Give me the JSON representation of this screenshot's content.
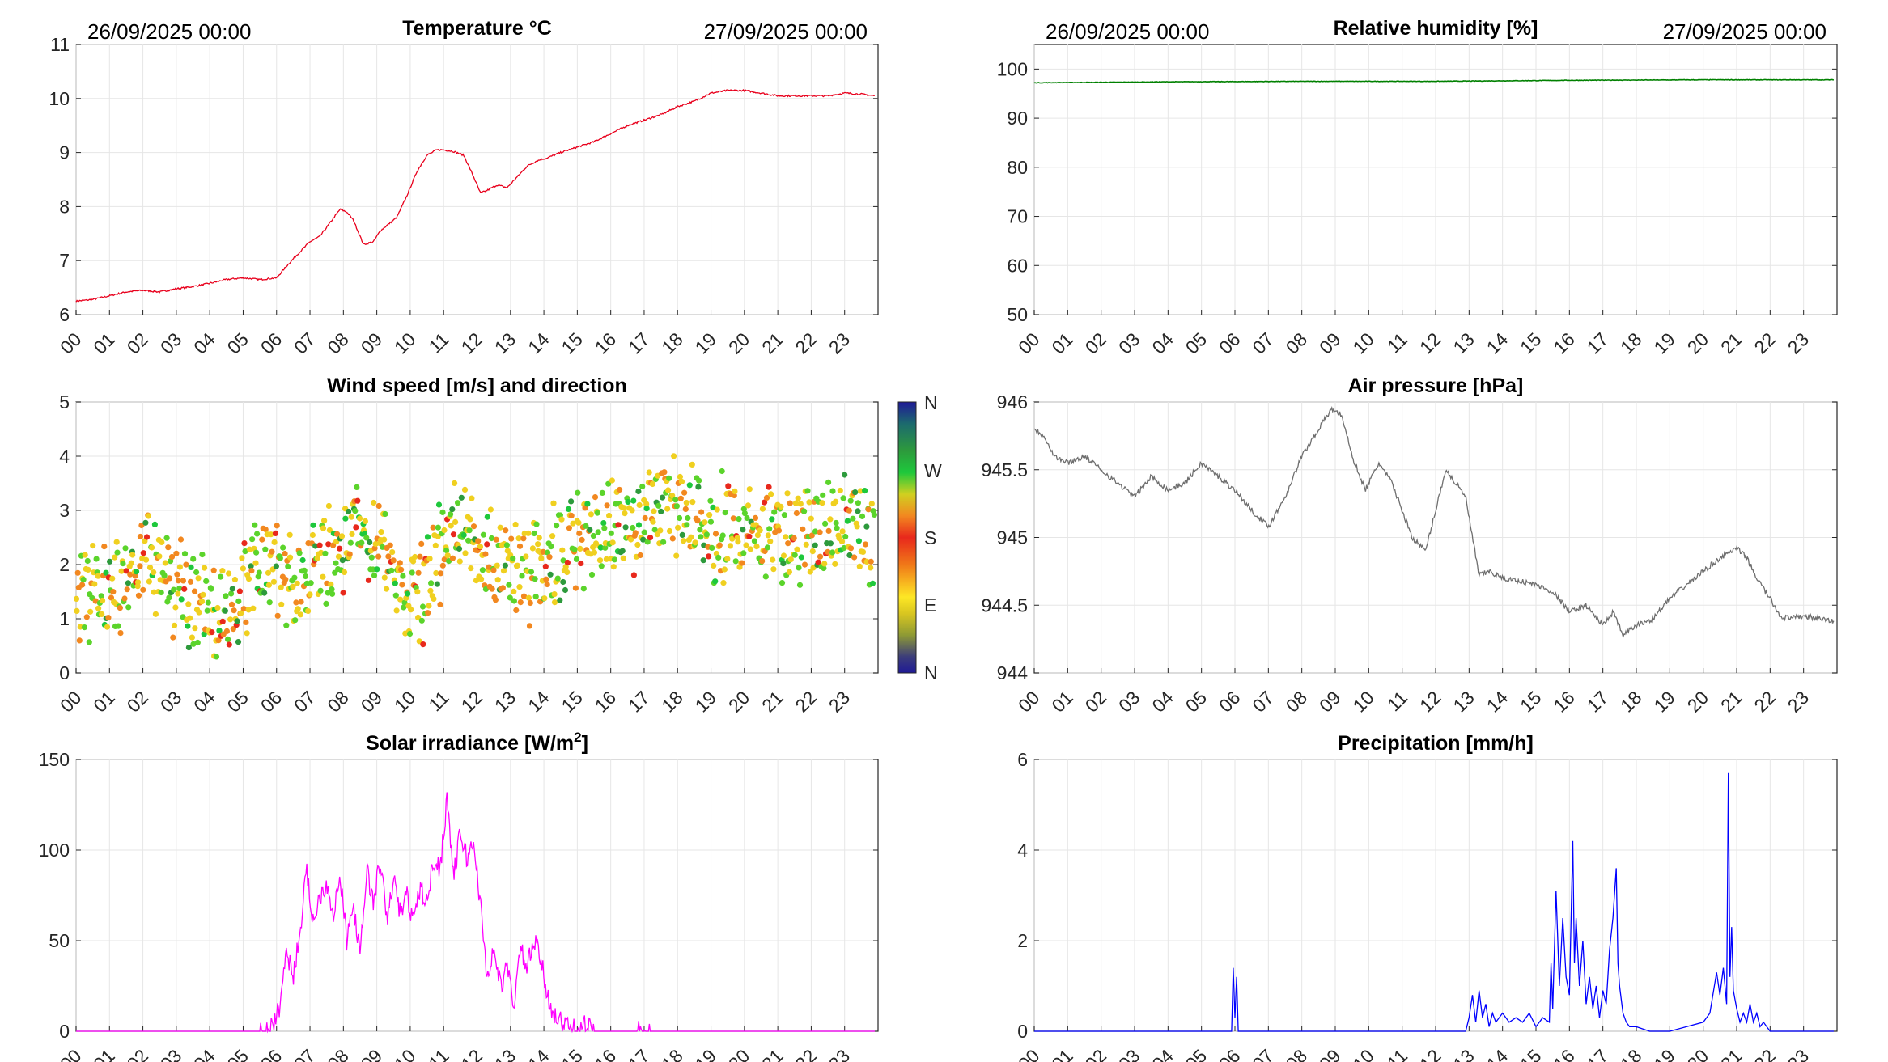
{
  "hour_labels": [
    "00",
    "01",
    "02",
    "03",
    "04",
    "05",
    "06",
    "07",
    "08",
    "09",
    "10",
    "11",
    "12",
    "13",
    "14",
    "15",
    "16",
    "17",
    "18",
    "19",
    "20",
    "21",
    "22",
    "23"
  ],
  "period": {
    "start": "26/09/2025 00:00",
    "end": "27/09/2025 00:00"
  },
  "colorbar": {
    "labels": [
      "N",
      "W",
      "S",
      "E",
      "N"
    ]
  },
  "chart_data": [
    {
      "id": "temperature",
      "type": "line",
      "title": "Temperature °C",
      "color": "#e8001c",
      "ylim": [
        6,
        11
      ],
      "yticks": [
        6,
        7,
        8,
        9,
        10,
        11
      ],
      "xlim": [
        0,
        24
      ],
      "grid": true,
      "x": [
        0,
        0.5,
        1,
        1.5,
        2,
        2.5,
        3,
        3.5,
        4,
        4.5,
        5,
        5.5,
        6,
        6.3,
        6.6,
        7,
        7.3,
        7.6,
        7.9,
        8.1,
        8.3,
        8.6,
        8.9,
        9.1,
        9.3,
        9.6,
        9.9,
        10.2,
        10.5,
        10.8,
        11,
        11.3,
        11.6,
        11.9,
        12.1,
        12.3,
        12.6,
        12.9,
        13.2,
        13.5,
        13.8,
        14.1,
        14.5,
        15,
        15.5,
        16,
        16.5,
        17,
        17.5,
        18,
        18.5,
        19,
        19.5,
        20,
        20.5,
        21,
        21.5,
        22,
        22.5,
        23,
        23.5,
        23.9
      ],
      "y": [
        6.25,
        6.28,
        6.35,
        6.42,
        6.45,
        6.42,
        6.48,
        6.52,
        6.58,
        6.65,
        6.68,
        6.65,
        6.68,
        6.9,
        7.1,
        7.35,
        7.45,
        7.7,
        7.95,
        7.9,
        7.75,
        7.3,
        7.35,
        7.55,
        7.65,
        7.8,
        8.2,
        8.65,
        8.95,
        9.05,
        9.05,
        9.02,
        8.95,
        8.55,
        8.25,
        8.3,
        8.4,
        8.35,
        8.55,
        8.75,
        8.85,
        8.9,
        9.0,
        9.1,
        9.2,
        9.35,
        9.5,
        9.6,
        9.7,
        9.85,
        9.95,
        10.1,
        10.15,
        10.15,
        10.1,
        10.05,
        10.05,
        10.05,
        10.05,
        10.1,
        10.08,
        10.05
      ]
    },
    {
      "id": "humidity",
      "type": "line",
      "title": "Relative humidity [%]",
      "color": "#008000",
      "ylim": [
        50,
        105
      ],
      "yticks": [
        50,
        60,
        70,
        80,
        90,
        100
      ],
      "xlim": [
        0,
        24
      ],
      "grid": true,
      "x": [
        0,
        4,
        8,
        12,
        16,
        20,
        23.9
      ],
      "y": [
        97.2,
        97.4,
        97.5,
        97.5,
        97.7,
        97.8,
        97.8
      ]
    },
    {
      "id": "wind",
      "type": "scatter",
      "title": "Wind speed [m/s] and direction",
      "ylim": [
        0,
        5
      ],
      "yticks": [
        0,
        1,
        2,
        3,
        4,
        5
      ],
      "xlim": [
        0,
        24
      ],
      "grid": true,
      "colormap": [
        "#1f1a96",
        "#2a3da8",
        "#2d9a3c",
        "#1ec83c",
        "#5bd42b",
        "#f0d020",
        "#f28820",
        "#e8281c",
        "#f07818",
        "#fde725",
        "#d9c620",
        "#8e9a34",
        "#3c3d7a",
        "#1f1a96"
      ],
      "speed_profile": {
        "x": [
          0,
          0.5,
          1,
          1.5,
          2,
          2.5,
          3,
          3.5,
          4,
          4.5,
          5,
          5.5,
          6,
          6.5,
          7,
          7.5,
          8,
          8.5,
          9,
          9.5,
          10,
          10.5,
          11,
          11.5,
          12,
          12.5,
          13,
          13.5,
          14,
          14.5,
          15,
          15.5,
          16,
          16.5,
          17,
          17.5,
          18,
          18.5,
          19,
          19.5,
          20,
          20.5,
          21,
          21.5,
          22,
          22.5,
          23,
          23.5,
          23.9
        ],
        "y": [
          1.5,
          1.6,
          1.3,
          1.8,
          2.2,
          2.0,
          1.6,
          1.4,
          1.3,
          0.9,
          1.7,
          2.0,
          2.0,
          1.6,
          1.8,
          2.0,
          2.4,
          2.6,
          2.3,
          2.0,
          1.3,
          1.5,
          2.5,
          2.7,
          2.4,
          2.0,
          1.9,
          1.8,
          2.0,
          2.3,
          2.5,
          2.5,
          2.7,
          2.8,
          2.9,
          3.1,
          3.2,
          2.8,
          2.6,
          2.7,
          2.5,
          2.6,
          2.7,
          2.6,
          2.6,
          2.7,
          2.8,
          2.7,
          2.6
        ]
      },
      "points_per_hour": 42,
      "spread": 1.0
    },
    {
      "id": "pressure",
      "type": "line",
      "title": "Air pressure [hPa]",
      "color": "#6e6e6e",
      "ylim": [
        944,
        946
      ],
      "yticks": [
        944,
        944.5,
        945,
        945.5,
        946
      ],
      "ytick_labels": [
        "944",
        "944.5",
        "945",
        "945.5",
        "946"
      ],
      "xlim": [
        0,
        24
      ],
      "grid": true,
      "x": [
        0,
        0.3,
        0.6,
        1,
        1.5,
        2,
        2.5,
        3,
        3.5,
        4,
        4.5,
        5,
        5.5,
        6,
        6.5,
        7,
        7.5,
        8,
        8.5,
        8.9,
        9.2,
        9.5,
        9.9,
        10.3,
        10.7,
        11,
        11.3,
        11.7,
        12,
        12.3,
        12.6,
        12.9,
        13.1,
        13.3,
        13.6,
        14,
        14.5,
        15,
        15.5,
        16,
        16.5,
        17,
        17.3,
        17.6,
        18,
        18.5,
        19,
        19.5,
        20,
        20.5,
        21,
        21.3,
        21.6,
        22,
        22.3,
        22.6,
        23,
        23.5,
        23.9
      ],
      "y": [
        945.8,
        945.75,
        945.6,
        945.55,
        945.6,
        945.5,
        945.4,
        945.3,
        945.45,
        945.35,
        945.4,
        945.55,
        945.45,
        945.35,
        945.2,
        945.08,
        945.3,
        945.6,
        945.8,
        945.95,
        945.9,
        945.6,
        945.35,
        945.55,
        945.4,
        945.2,
        945.0,
        944.9,
        945.2,
        945.5,
        945.4,
        945.3,
        945.0,
        944.72,
        944.75,
        944.7,
        944.68,
        944.65,
        944.6,
        944.45,
        944.5,
        944.35,
        944.45,
        944.28,
        944.35,
        944.4,
        944.55,
        944.65,
        944.75,
        944.85,
        944.92,
        944.85,
        944.7,
        944.55,
        944.42,
        944.4,
        944.42,
        944.4,
        944.38
      ]
    },
    {
      "id": "solar",
      "type": "line",
      "title": "Solar irradiance [W/m",
      "title_sup": "2",
      "title_end": "]",
      "color": "#ff00ff",
      "ylim": [
        0,
        150
      ],
      "yticks": [
        0,
        50,
        100,
        150
      ],
      "xlim": [
        0,
        24
      ],
      "grid": true,
      "x": [
        0,
        5.5,
        5.9,
        6.1,
        6.3,
        6.5,
        6.7,
        6.9,
        7.1,
        7.3,
        7.5,
        7.7,
        7.9,
        8.1,
        8.3,
        8.5,
        8.7,
        8.9,
        9.1,
        9.3,
        9.5,
        9.7,
        9.9,
        10.1,
        10.3,
        10.5,
        10.7,
        10.9,
        11.1,
        11.3,
        11.5,
        11.7,
        11.9,
        12.1,
        12.3,
        12.5,
        12.7,
        12.9,
        13.1,
        13.3,
        13.5,
        13.7,
        13.9,
        14.1,
        14.3,
        14.5,
        14.7,
        14.9,
        15.1,
        15.3,
        15.5,
        16,
        16.8,
        17,
        17.2,
        18,
        20,
        23.9
      ],
      "y": [
        0,
        0,
        2,
        15,
        45,
        30,
        55,
        88,
        60,
        75,
        82,
        65,
        85,
        50,
        70,
        40,
        90,
        70,
        95,
        60,
        85,
        65,
        75,
        60,
        80,
        70,
        95,
        90,
        130,
        85,
        110,
        95,
        105,
        70,
        30,
        45,
        25,
        35,
        15,
        45,
        35,
        50,
        40,
        20,
        10,
        5,
        3,
        1,
        4,
        2,
        0,
        0,
        0,
        2,
        0,
        0,
        0,
        0
      ]
    },
    {
      "id": "precip",
      "type": "line",
      "title": "Precipitation [mm/h]",
      "color": "#0000ff",
      "ylim": [
        0,
        6
      ],
      "yticks": [
        0,
        2,
        4,
        6
      ],
      "xlim": [
        0,
        24
      ],
      "grid": true,
      "x": [
        0,
        5.9,
        5.95,
        6.0,
        6.05,
        6.1,
        12.9,
        13.0,
        13.1,
        13.2,
        13.3,
        13.4,
        13.5,
        13.6,
        13.7,
        13.8,
        14.0,
        14.2,
        14.4,
        14.6,
        14.8,
        15.0,
        15.2,
        15.4,
        15.45,
        15.5,
        15.6,
        15.7,
        15.8,
        15.9,
        16.0,
        16.1,
        16.15,
        16.2,
        16.3,
        16.4,
        16.5,
        16.6,
        16.7,
        16.8,
        16.9,
        17.0,
        17.1,
        17.2,
        17.3,
        17.4,
        17.45,
        17.5,
        17.6,
        17.7,
        17.8,
        18.0,
        18.2,
        18.4,
        19.0,
        19.5,
        20.0,
        20.2,
        20.4,
        20.5,
        20.6,
        20.7,
        20.75,
        20.8,
        20.85,
        20.9,
        21.0,
        21.1,
        21.2,
        21.3,
        21.4,
        21.5,
        21.6,
        21.7,
        21.8,
        22.0,
        23.9
      ],
      "y": [
        0,
        0,
        1.4,
        0.3,
        1.2,
        0,
        0,
        0.3,
        0.8,
        0.2,
        0.9,
        0.3,
        0.6,
        0.1,
        0.4,
        0.2,
        0.4,
        0.2,
        0.3,
        0.2,
        0.4,
        0.1,
        0.3,
        0.2,
        1.5,
        0.5,
        3.1,
        1.0,
        2.5,
        1.2,
        0.8,
        4.2,
        1.5,
        2.5,
        1.0,
        2.0,
        0.6,
        1.2,
        0.5,
        1.0,
        0.3,
        0.9,
        0.6,
        1.8,
        2.5,
        3.6,
        1.5,
        1.0,
        0.4,
        0.2,
        0.1,
        0.1,
        0.05,
        0,
        0,
        0.1,
        0.2,
        0.4,
        1.3,
        0.8,
        1.4,
        0.6,
        5.7,
        1.2,
        2.3,
        0.9,
        0.5,
        0.2,
        0.4,
        0.2,
        0.6,
        0.2,
        0.4,
        0.1,
        0.2,
        0,
        0
      ]
    }
  ]
}
